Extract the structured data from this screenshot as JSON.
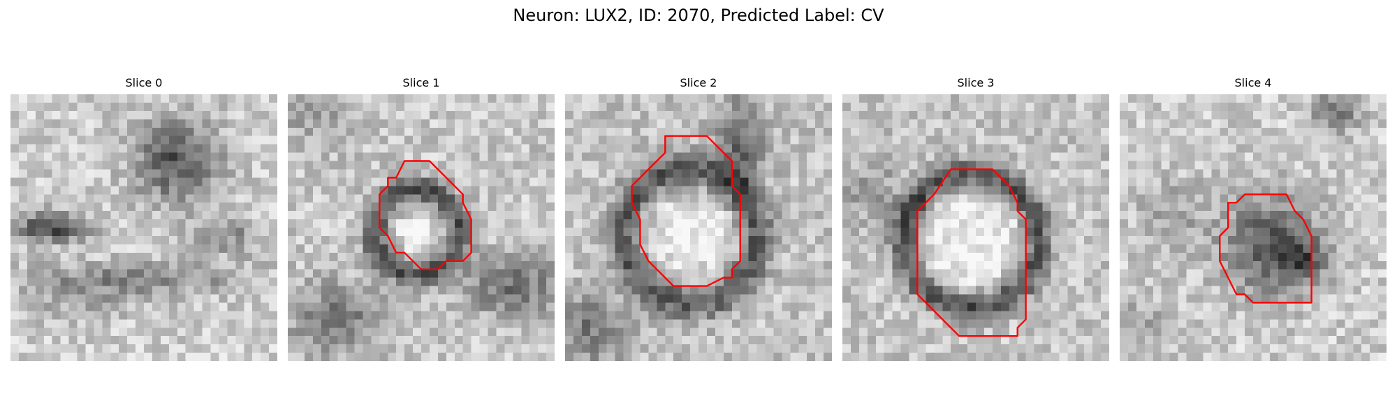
{
  "figure": {
    "title": "Neuron: LUX2, ID: 2070, Predicted Label: CV",
    "contour_color": "#ff0000",
    "colormap": "gray",
    "slices": [
      {
        "label": "Slice 0",
        "has_contour": false
      },
      {
        "label": "Slice 1",
        "has_contour": true
      },
      {
        "label": "Slice 2",
        "has_contour": true
      },
      {
        "label": "Slice 3",
        "has_contour": true
      },
      {
        "label": "Slice 4",
        "has_contour": true
      }
    ]
  }
}
